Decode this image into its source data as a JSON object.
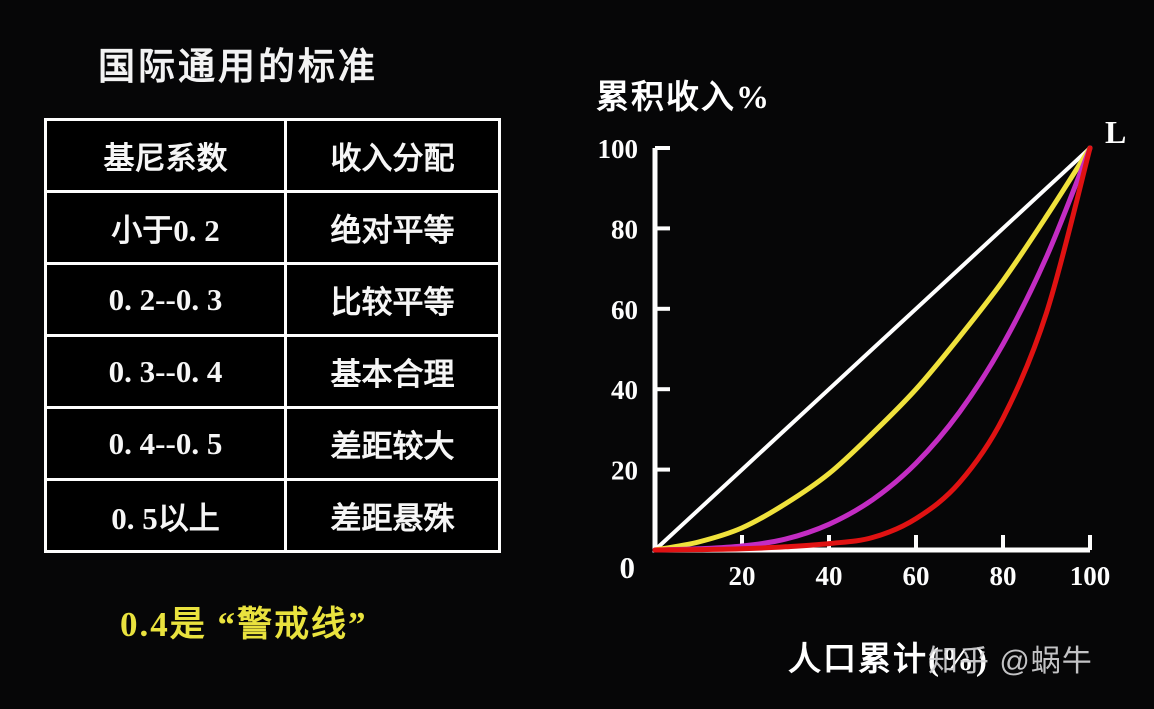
{
  "left": {
    "title": "国际通用的标准",
    "table": {
      "headers": [
        "基尼系数",
        "收入分配"
      ],
      "rows": [
        [
          "小于0. 2",
          "绝对平等"
        ],
        [
          "0. 2--0. 3",
          "比较平等"
        ],
        [
          "0. 3--0. 4",
          "基本合理"
        ],
        [
          "0. 4--0. 5",
          "差距较大"
        ],
        [
          "0. 5以上",
          "差距悬殊"
        ]
      ]
    },
    "caption": "0.4是 “警戒线”"
  },
  "watermark": {
    "text": "知乎 @蜗牛"
  },
  "chart_data": {
    "type": "line",
    "title": "",
    "ylabel": "累积收入%",
    "xlabel": "人口累计(%)",
    "xlim": [
      0,
      100
    ],
    "ylim": [
      0,
      100
    ],
    "x_ticks": [
      20,
      40,
      60,
      80,
      100
    ],
    "y_ticks": [
      20,
      40,
      60,
      80,
      100
    ],
    "origin_label": "0",
    "corner_label": "L",
    "grid": false,
    "legend": false,
    "x": [
      0,
      10,
      20,
      30,
      40,
      50,
      60,
      70,
      80,
      90,
      100
    ],
    "series": [
      {
        "id": "equality-line",
        "name": "absolute-equality-diagonal",
        "color": "#ffffff",
        "width": 4,
        "values": [
          0,
          10,
          20,
          30,
          40,
          50,
          60,
          70,
          80,
          90,
          100
        ]
      },
      {
        "id": "lorenz-yellow",
        "name": "lorenz-curve-yellow",
        "color": "#f0e23c",
        "width": 5,
        "values": [
          0,
          2,
          5.5,
          11.5,
          19,
          29,
          40,
          53,
          67,
          83,
          100
        ]
      },
      {
        "id": "lorenz-magenta",
        "name": "lorenz-curve-magenta",
        "color": "#c32cc3",
        "width": 5,
        "values": [
          0,
          0.3,
          1,
          2.7,
          6.4,
          12.5,
          21.6,
          34.3,
          51.2,
          72.9,
          100
        ]
      },
      {
        "id": "lorenz-red",
        "name": "lorenz-curve-red",
        "color": "#e01212",
        "width": 5,
        "values": [
          0,
          0.1,
          0.3,
          0.8,
          1.6,
          3.1,
          7.8,
          16.8,
          32.8,
          59,
          100
        ]
      }
    ]
  }
}
